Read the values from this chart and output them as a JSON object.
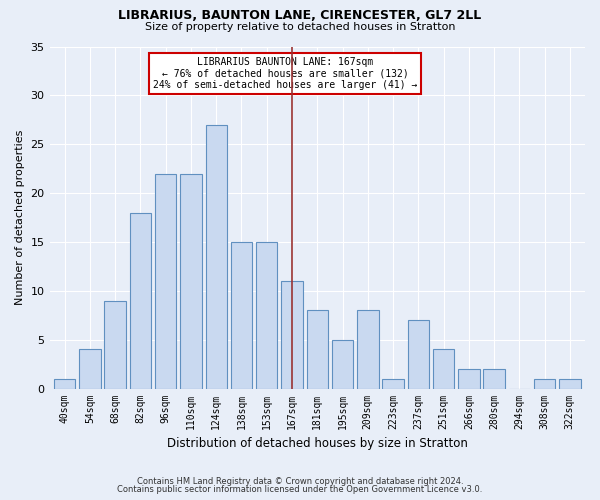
{
  "title1": "LIBRARIUS, BAUNTON LANE, CIRENCESTER, GL7 2LL",
  "title2": "Size of property relative to detached houses in Stratton",
  "xlabel": "Distribution of detached houses by size in Stratton",
  "ylabel": "Number of detached properties",
  "categories": [
    "40sqm",
    "54sqm",
    "68sqm",
    "82sqm",
    "96sqm",
    "110sqm",
    "124sqm",
    "138sqm",
    "153sqm",
    "167sqm",
    "181sqm",
    "195sqm",
    "209sqm",
    "223sqm",
    "237sqm",
    "251sqm",
    "266sqm",
    "280sqm",
    "294sqm",
    "308sqm",
    "322sqm"
  ],
  "values": [
    1,
    4,
    9,
    18,
    22,
    22,
    27,
    15,
    15,
    11,
    8,
    5,
    8,
    1,
    7,
    4,
    2,
    2,
    0,
    1,
    1
  ],
  "bar_color": "#c9d9f0",
  "bar_edge_color": "#6090c0",
  "highlight_index": 9,
  "highlight_line_color": "#993333",
  "annotation_text": "LIBRARIUS BAUNTON LANE: 167sqm\n← 76% of detached houses are smaller (132)\n24% of semi-detached houses are larger (41) →",
  "annotation_box_color": "#ffffff",
  "annotation_box_edge": "#cc0000",
  "ylim": [
    0,
    35
  ],
  "yticks": [
    0,
    5,
    10,
    15,
    20,
    25,
    30,
    35
  ],
  "bg_color": "#e8eef8",
  "grid_color": "#ffffff",
  "footer1": "Contains HM Land Registry data © Crown copyright and database right 2024.",
  "footer2": "Contains public sector information licensed under the Open Government Licence v3.0."
}
